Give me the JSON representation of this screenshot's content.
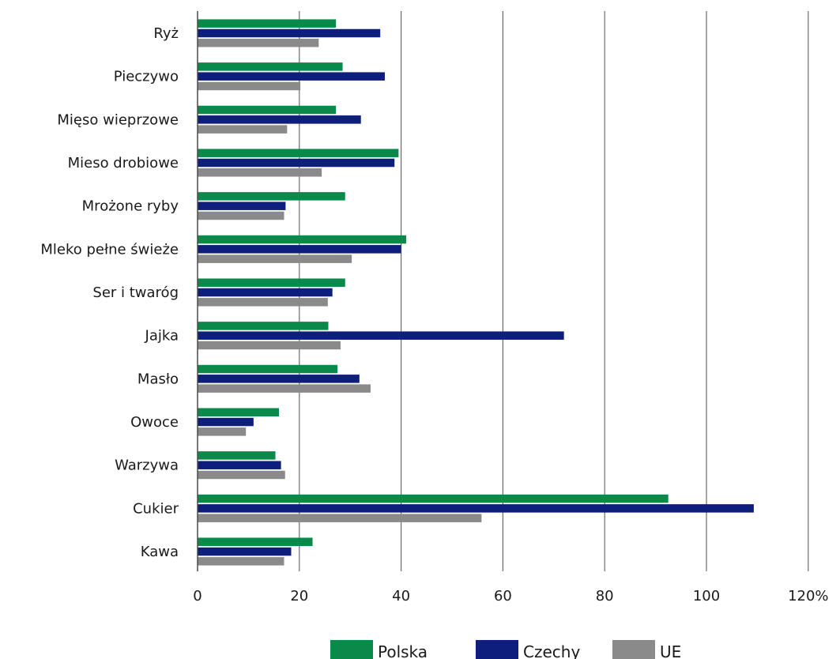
{
  "chart_data": {
    "type": "bar",
    "orientation": "horizontal",
    "categories": [
      "Ryż",
      "Pieczywo",
      "Mięso wieprzowe",
      "Mieso drobiowe",
      "Mrożone ryby",
      "Mleko pełne świeże",
      "Ser i twaróg",
      "Jajka",
      "Masło",
      "Owoce",
      "Warzywa",
      "Cukier",
      "Kawa"
    ],
    "series": [
      {
        "name": "Polska",
        "color": "#0a8a4a",
        "values": [
          27.2,
          28.5,
          27.2,
          39.5,
          29.0,
          41.0,
          29.0,
          25.7,
          27.5,
          16.0,
          15.3,
          92.5,
          22.6
        ]
      },
      {
        "name": "Czechy",
        "color": "#0d1f7a",
        "values": [
          35.9,
          36.8,
          32.1,
          38.7,
          17.3,
          40.0,
          26.5,
          72.0,
          31.8,
          11.0,
          16.4,
          109.3,
          18.4
        ]
      },
      {
        "name": "UE",
        "color": "#8a8a8a",
        "values": [
          23.8,
          20.2,
          17.6,
          24.4,
          17.0,
          30.3,
          25.6,
          28.1,
          34.0,
          9.5,
          17.2,
          55.8,
          17.0
        ]
      }
    ],
    "x_ticks": [
      "0",
      "20",
      "40",
      "60",
      "80",
      "100",
      "120%"
    ],
    "xlim": [
      0,
      120
    ],
    "grid": true,
    "legend_position": "bottom"
  }
}
